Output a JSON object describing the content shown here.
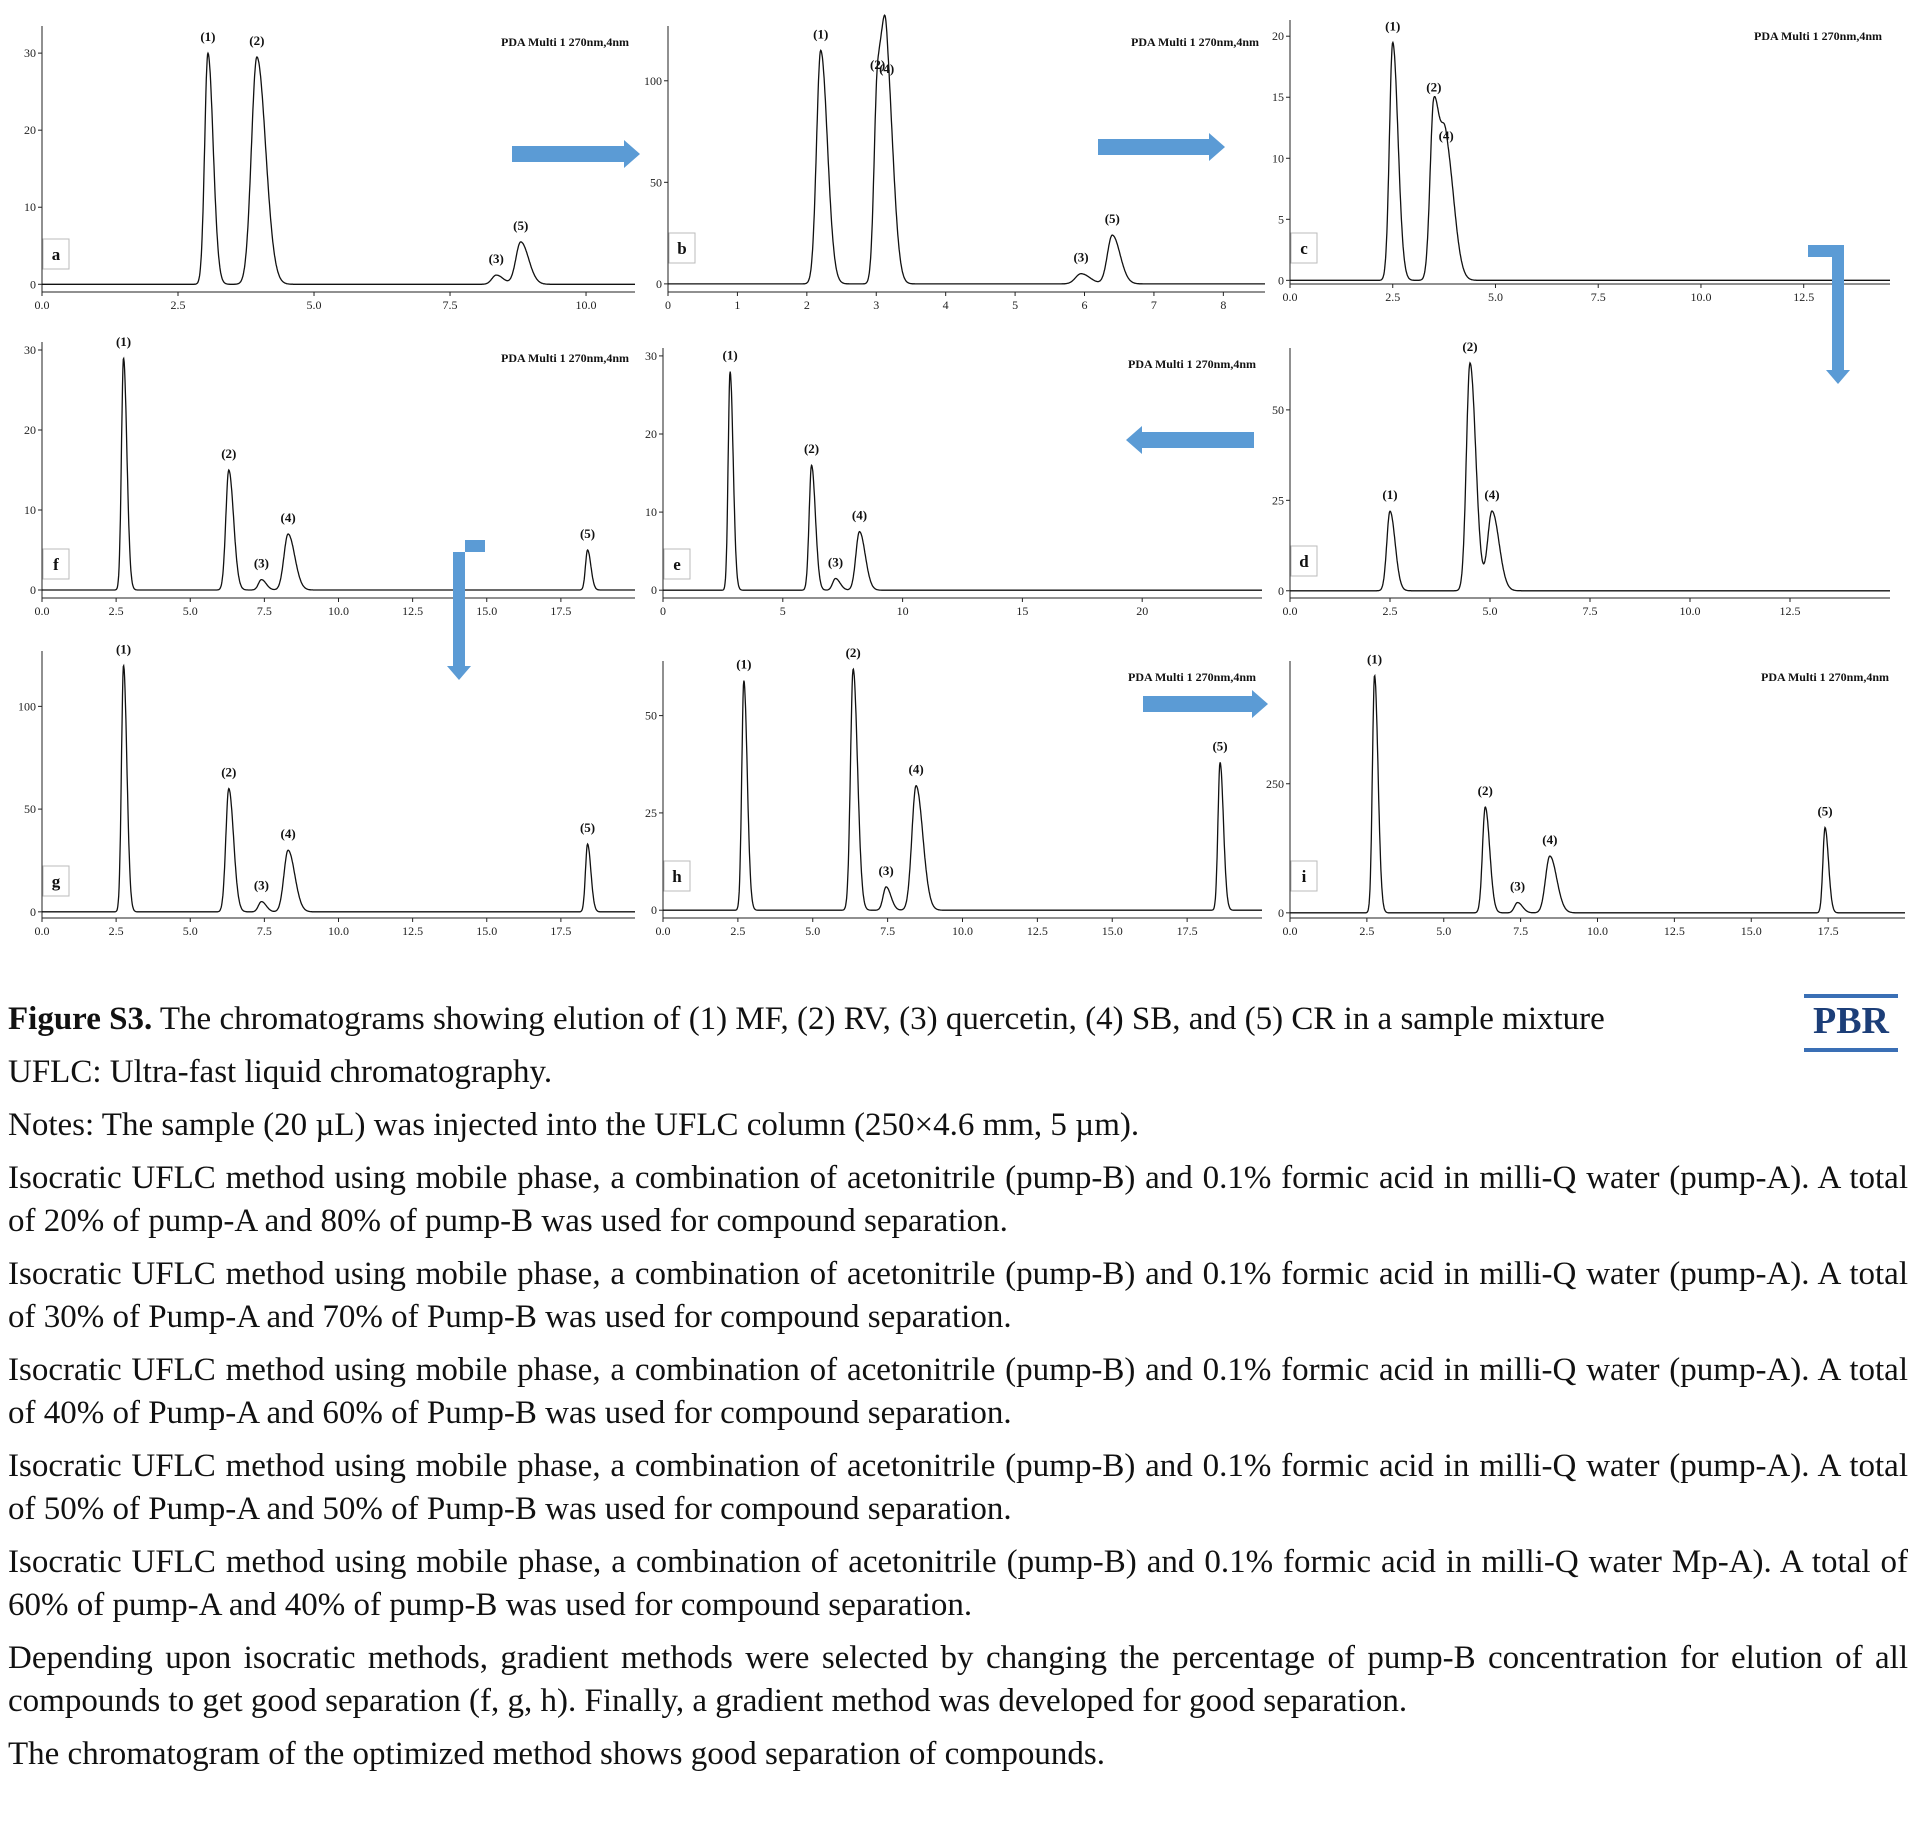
{
  "chart_data": [
    {
      "id": "a",
      "type": "line",
      "panel_label": "a",
      "header": "PDA Multi 1 270nm,4nm",
      "x_ticks": [
        "0.0",
        "2.5",
        "5.0",
        "7.5",
        "10.0"
      ],
      "y_ticks": [
        "0",
        "10",
        "20",
        "30"
      ],
      "xlim": [
        0,
        10.9
      ],
      "ylim": [
        -1,
        33
      ],
      "baseline": 0,
      "peaks": [
        {
          "label": "(1)",
          "x": 3.05,
          "h": 30,
          "w": 0.06
        },
        {
          "label": "(2)",
          "x": 3.95,
          "h": 29.5,
          "w": 0.1
        },
        {
          "label": "(3)",
          "x": 8.35,
          "h": 1.2,
          "w": 0.08
        },
        {
          "label": "(5)",
          "x": 8.8,
          "h": 5.5,
          "w": 0.09
        }
      ]
    },
    {
      "id": "b",
      "type": "line",
      "panel_label": "b",
      "header": "PDA Multi 1 270nm,4nm",
      "x_ticks": [
        "0",
        "1",
        "2",
        "3",
        "4",
        "5",
        "6",
        "7",
        "8"
      ],
      "y_ticks": [
        "0",
        "50",
        "100"
      ],
      "xlim": [
        0,
        8.6
      ],
      "ylim": [
        -4,
        125
      ],
      "baseline": 0,
      "peaks": [
        {
          "label": "(1)",
          "x": 2.2,
          "h": 115,
          "w": 0.06
        },
        {
          "label": "(2)",
          "x": 3.02,
          "h": 100,
          "w": 0.05
        },
        {
          "label": "(4)",
          "x": 3.15,
          "h": 98,
          "w": 0.06
        },
        {
          "label": "(3)",
          "x": 5.95,
          "h": 5,
          "w": 0.08
        },
        {
          "label": "(5)",
          "x": 6.4,
          "h": 24,
          "w": 0.07
        }
      ]
    },
    {
      "id": "c",
      "type": "line",
      "panel_label": "c",
      "header": "PDA Multi 1 270nm,4nm",
      "x_ticks": [
        "0.0",
        "2.5",
        "5.0",
        "7.5",
        "10.0",
        "12.5"
      ],
      "y_ticks": [
        "0",
        "5",
        "10",
        "15",
        "20"
      ],
      "xlim": [
        0,
        14.6
      ],
      "ylim": [
        -0.3,
        21
      ],
      "baseline": 0,
      "peaks": [
        {
          "label": "(1)",
          "x": 2.5,
          "h": 19.5,
          "w": 0.08
        },
        {
          "label": "(2)",
          "x": 3.5,
          "h": 14.5,
          "w": 0.09
        },
        {
          "label": "(4)",
          "x": 3.8,
          "h": 10.5,
          "w": 0.12
        }
      ]
    },
    {
      "id": "f",
      "type": "line",
      "panel_label": "f",
      "header": "PDA Multi 1 270nm,4nm",
      "x_ticks": [
        "0.0",
        "2.5",
        "5.0",
        "7.5",
        "10.0",
        "12.5",
        "15.0",
        "17.5"
      ],
      "y_ticks": [
        "0",
        "10",
        "20",
        "30"
      ],
      "xlim": [
        0,
        20
      ],
      "ylim": [
        -1,
        30.5
      ],
      "baseline": 0,
      "peaks": [
        {
          "label": "(1)",
          "x": 2.75,
          "h": 29,
          "w": 0.07
        },
        {
          "label": "(2)",
          "x": 6.3,
          "h": 15,
          "w": 0.1
        },
        {
          "label": "(3)",
          "x": 7.4,
          "h": 1.3,
          "w": 0.1
        },
        {
          "label": "(4)",
          "x": 8.3,
          "h": 7,
          "w": 0.14
        },
        {
          "label": "(5)",
          "x": 18.4,
          "h": 5,
          "w": 0.07
        }
      ]
    },
    {
      "id": "e",
      "type": "line",
      "panel_label": "e",
      "header": "PDA Multi 1 270nm,4nm",
      "x_ticks": [
        "0",
        "5",
        "10",
        "15",
        "20"
      ],
      "y_ticks": [
        "0",
        "10",
        "20",
        "30"
      ],
      "xlim": [
        0,
        25
      ],
      "ylim": [
        -1,
        30.5
      ],
      "baseline": 0,
      "peaks": [
        {
          "label": "(1)",
          "x": 2.8,
          "h": 28,
          "w": 0.08
        },
        {
          "label": "(2)",
          "x": 6.2,
          "h": 16,
          "w": 0.1
        },
        {
          "label": "(3)",
          "x": 7.2,
          "h": 1.5,
          "w": 0.12
        },
        {
          "label": "(4)",
          "x": 8.2,
          "h": 7.5,
          "w": 0.15
        }
      ]
    },
    {
      "id": "d",
      "type": "line",
      "panel_label": "d",
      "header": "",
      "x_ticks": [
        "0.0",
        "2.5",
        "5.0",
        "7.5",
        "10.0",
        "12.5"
      ],
      "y_ticks": [
        "0",
        "25",
        "50"
      ],
      "xlim": [
        0,
        15
      ],
      "ylim": [
        -2,
        66
      ],
      "baseline": 0,
      "peaks": [
        {
          "label": "(1)",
          "x": 2.5,
          "h": 22,
          "w": 0.08
        },
        {
          "label": "(2)",
          "x": 4.5,
          "h": 63,
          "w": 0.09
        },
        {
          "label": "(4)",
          "x": 5.05,
          "h": 22,
          "w": 0.11
        }
      ]
    },
    {
      "id": "g",
      "type": "line",
      "panel_label": "g",
      "header": "",
      "x_ticks": [
        "0.0",
        "2.5",
        "5.0",
        "7.5",
        "10.0",
        "12.5",
        "15.0",
        "17.5"
      ],
      "y_ticks": [
        "0",
        "50",
        "100"
      ],
      "xlim": [
        0,
        20
      ],
      "ylim": [
        -3,
        125
      ],
      "baseline": 0,
      "peaks": [
        {
          "label": "(1)",
          "x": 2.75,
          "h": 120,
          "w": 0.07
        },
        {
          "label": "(2)",
          "x": 6.3,
          "h": 60,
          "w": 0.1
        },
        {
          "label": "(3)",
          "x": 7.4,
          "h": 5,
          "w": 0.1
        },
        {
          "label": "(4)",
          "x": 8.3,
          "h": 30,
          "w": 0.14
        },
        {
          "label": "(5)",
          "x": 18.4,
          "h": 33,
          "w": 0.07
        }
      ]
    },
    {
      "id": "h",
      "type": "line",
      "panel_label": "h",
      "header": "PDA Multi 1 270nm,4nm",
      "x_ticks": [
        "0.0",
        "2.5",
        "5.0",
        "7.5",
        "10.0",
        "12.5",
        "15.0",
        "17.5"
      ],
      "y_ticks": [
        "0",
        "25",
        "50"
      ],
      "xlim": [
        0,
        20
      ],
      "ylim": [
        -2,
        63
      ],
      "baseline": 0,
      "peaks": [
        {
          "label": "(1)",
          "x": 2.7,
          "h": 59,
          "w": 0.07
        },
        {
          "label": "(2)",
          "x": 6.35,
          "h": 62,
          "w": 0.09
        },
        {
          "label": "(3)",
          "x": 7.45,
          "h": 6,
          "w": 0.1
        },
        {
          "label": "(4)",
          "x": 8.45,
          "h": 32,
          "w": 0.14
        },
        {
          "label": "(5)",
          "x": 18.6,
          "h": 38,
          "w": 0.07
        }
      ]
    },
    {
      "id": "i",
      "type": "line",
      "panel_label": "i",
      "header": "PDA Multi 1 270nm,4nm",
      "x_ticks": [
        "0.0",
        "2.5",
        "5.0",
        "7.5",
        "10.0",
        "12.5",
        "15.0",
        "17.5"
      ],
      "y_ticks": [
        "0",
        "250"
      ],
      "xlim": [
        0,
        20
      ],
      "ylim": [
        -10,
        480
      ],
      "baseline": 0,
      "peaks": [
        {
          "label": "(1)",
          "x": 2.75,
          "h": 460,
          "w": 0.07
        },
        {
          "label": "(2)",
          "x": 6.35,
          "h": 205,
          "w": 0.09
        },
        {
          "label": "(3)",
          "x": 7.4,
          "h": 20,
          "w": 0.1
        },
        {
          "label": "(4)",
          "x": 8.45,
          "h": 110,
          "w": 0.14
        },
        {
          "label": "(5)",
          "x": 17.4,
          "h": 165,
          "w": 0.07
        }
      ]
    }
  ],
  "caption": {
    "title_bold": "Figure S3.",
    "title_rest": " The chromatograms showing elution of (1) MF, (2) RV, (3) quercetin, (4) SB, and (5) CR in a sample mixture",
    "abbrev": "UFLC: Ultra-fast liquid chromatography.",
    "notes": "Notes: The sample (20 µL) was injected into the UFLC column (250×4.6 mm, 5 µm).",
    "para_a": "Isocratic UFLC method using mobile phase, a combination of acetonitrile (pump-B) and 0.1% formic acid in milli-Q water (pump-A). A total of 20% of pump-A and 80% of pump-B was used for compound separation.",
    "para_b": "Isocratic UFLC method using mobile phase, a combination of acetonitrile (pump-B) and 0.1% formic acid in milli-Q water (pump-A). A total of 30% of Pump-A and 70% of Pump-B was used for compound separation.",
    "para_c": "Isocratic UFLC method using mobile phase, a combination of acetonitrile (pump-B) and 0.1% formic acid in milli-Q water (pump-A). A total of 40% of Pump-A and 60% of Pump-B was used for compound separation.",
    "para_d": "Isocratic UFLC method using mobile phase, a combination of acetonitrile (pump-B) and 0.1% formic acid in milli-Q water (pump-A). A total of 50% of Pump-A and 50% of Pump-B was used for compound separation.",
    "para_e": "Isocratic UFLC method using mobile phase, a combination of acetonitrile (pump-B) and 0.1% formic acid in milli-Q water Mp-A). A total of 60% of pump-A and 40% of pump-B was used for compound separation.",
    "para_gradient": "Depending upon isocratic methods, gradient methods were selected by changing the percentage of pump-B concentration for elution of all compounds to get good separation (f, g, h). Finally, a gradient method was developed for good separation.",
    "para_final": "The chromatogram of the optimized method shows good separation of compounds."
  },
  "logo": {
    "text": "PBR"
  },
  "colors": {
    "arrow": "#5b9bd5",
    "trace": "#111111",
    "logo": "#1c3e78"
  }
}
